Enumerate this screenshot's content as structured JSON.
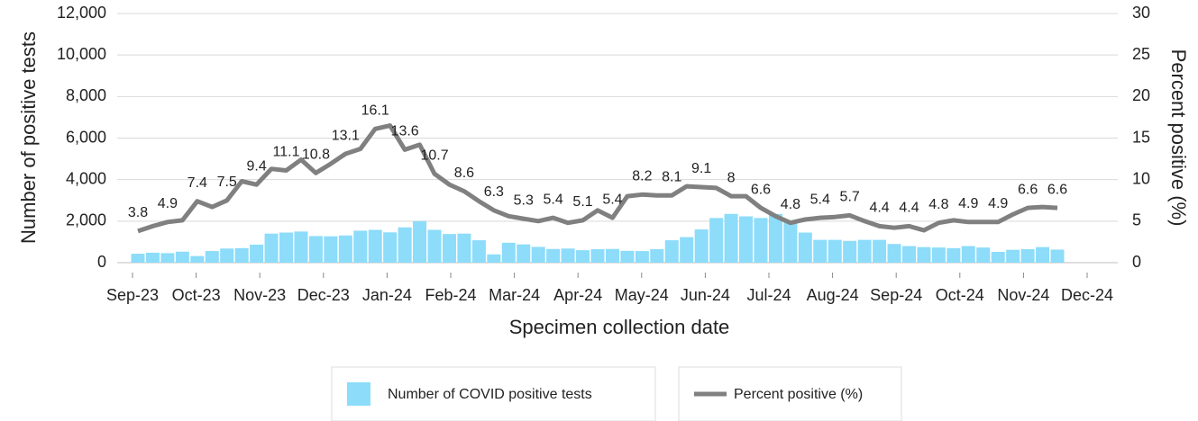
{
  "chart_data": {
    "type": "bar-line",
    "x_title": "Specimen collection date",
    "y_title": "Number of positive tests",
    "y2_title": "Percent positive (%)",
    "xticks": [
      "Sep-23",
      "Oct-23",
      "Nov-23",
      "Dec-23",
      "Jan-24",
      "Feb-24",
      "Mar-24",
      "Apr-24",
      "May-24",
      "Jun-24",
      "Jul-24",
      "Aug-24",
      "Sep-24",
      "Oct-24",
      "Nov-24",
      "Dec-24"
    ],
    "ylim": [
      0,
      12000
    ],
    "yticks": [
      0,
      {
        "value": 2000,
        "label": "2,000"
      },
      {
        "value": 4000,
        "label": "4,000"
      },
      {
        "value": 6000,
        "label": "6,000"
      },
      {
        "value": 8000,
        "label": "8,000"
      },
      {
        "value": 10000,
        "label": "10,000"
      },
      {
        "value": 12000,
        "label": "12,000"
      }
    ],
    "y2lim": [
      0,
      30
    ],
    "y2ticks": [
      0,
      5,
      10,
      15,
      20,
      25,
      30
    ],
    "grid": true,
    "series": [
      {
        "name": "Number of COVID positive tests",
        "type": "bar",
        "color": "#8cdcfa",
        "axis": "y",
        "values": [
          430,
          480,
          460,
          530,
          320,
          560,
          680,
          700,
          870,
          1400,
          1450,
          1500,
          1280,
          1270,
          1310,
          1540,
          1580,
          1460,
          1700,
          2000,
          1580,
          1380,
          1400,
          1080,
          400,
          960,
          880,
          760,
          660,
          680,
          600,
          650,
          660,
          570,
          560,
          650,
          1080,
          1230,
          1600,
          2150,
          2350,
          2230,
          2150,
          2350,
          2000,
          1450,
          1100,
          1100,
          1050,
          1100,
          1100,
          900,
          800,
          750,
          730,
          700,
          800,
          730,
          520,
          620,
          650,
          750,
          630
        ]
      },
      {
        "name": "Percent positive (%)",
        "type": "line",
        "color": "#808080",
        "axis": "y2",
        "values": [
          3.8,
          4.4,
          4.9,
          5.1,
          7.4,
          6.7,
          7.5,
          9.8,
          9.4,
          11.3,
          11.1,
          12.4,
          10.8,
          11.9,
          13.1,
          13.7,
          16.1,
          16.5,
          13.6,
          14.2,
          10.7,
          9.4,
          8.6,
          7.4,
          6.3,
          5.6,
          5.3,
          5.0,
          5.4,
          4.8,
          5.1,
          6.3,
          5.4,
          8.0,
          8.2,
          8.1,
          8.1,
          9.2,
          9.1,
          9.0,
          8,
          8.0,
          6.6,
          5.6,
          4.8,
          5.2,
          5.4,
          5.5,
          5.7,
          5.0,
          4.4,
          4.2,
          4.4,
          3.9,
          4.8,
          5.1,
          4.9,
          4.9,
          4.9,
          5.8,
          6.6,
          6.7,
          6.6
        ]
      }
    ]
  }
}
